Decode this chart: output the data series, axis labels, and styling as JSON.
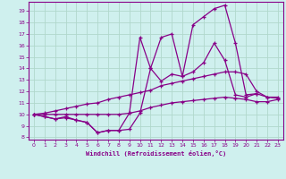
{
  "xlabel": "Windchill (Refroidissement éolien,°C)",
  "background_color": "#cff0ee",
  "grid_color": "#b0d8cc",
  "line_color": "#880088",
  "xlim": [
    -0.5,
    23.5
  ],
  "ylim": [
    7.8,
    19.8
  ],
  "xticks": [
    0,
    1,
    2,
    3,
    4,
    5,
    6,
    7,
    8,
    9,
    10,
    11,
    12,
    13,
    14,
    15,
    16,
    17,
    18,
    19,
    20,
    21,
    22,
    23
  ],
  "yticks": [
    8,
    9,
    10,
    11,
    12,
    13,
    14,
    15,
    16,
    17,
    18,
    19
  ],
  "series": [
    [
      10.0,
      9.8,
      9.6,
      9.8,
      9.5,
      9.3,
      8.4,
      8.6,
      8.6,
      10.1,
      16.7,
      14.0,
      16.7,
      17.0,
      13.3,
      17.8,
      18.5,
      19.2,
      19.5,
      16.2,
      11.7,
      11.8,
      11.5,
      11.5
    ],
    [
      10.0,
      9.8,
      9.6,
      9.7,
      9.5,
      9.3,
      8.4,
      8.6,
      8.6,
      8.7,
      10.1,
      14.0,
      12.9,
      13.5,
      13.3,
      13.7,
      14.5,
      16.2,
      14.7,
      11.7,
      11.5,
      11.8,
      null,
      null
    ],
    [
      10.0,
      10.1,
      10.3,
      10.5,
      10.7,
      10.9,
      11.0,
      11.3,
      11.5,
      11.7,
      11.9,
      12.1,
      12.5,
      12.7,
      12.9,
      13.1,
      13.3,
      13.5,
      13.7,
      13.7,
      13.5,
      12.0,
      11.5,
      11.4
    ],
    [
      10.0,
      10.0,
      10.0,
      10.0,
      10.0,
      10.0,
      10.0,
      10.0,
      10.0,
      10.1,
      10.3,
      10.6,
      10.8,
      11.0,
      11.1,
      11.2,
      11.3,
      11.4,
      11.5,
      11.4,
      11.3,
      11.1,
      11.1,
      11.3
    ]
  ]
}
